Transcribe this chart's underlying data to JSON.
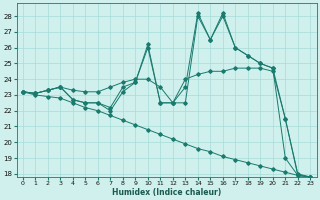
{
  "title": "",
  "xlabel": "Humidex (Indice chaleur)",
  "bg_color": "#cff0ec",
  "grid_color": "#a8ddd8",
  "line_color": "#1a7a6e",
  "xlim": [
    -0.5,
    23.5
  ],
  "ylim": [
    17.8,
    28.8
  ],
  "yticks": [
    18,
    19,
    20,
    21,
    22,
    23,
    24,
    25,
    26,
    27,
    28
  ],
  "xticks": [
    0,
    1,
    2,
    3,
    4,
    5,
    6,
    7,
    8,
    9,
    10,
    11,
    12,
    13,
    14,
    15,
    16,
    17,
    18,
    19,
    20,
    21,
    22,
    23
  ],
  "series": [
    {
      "x": [
        0,
        1,
        2,
        3,
        4,
        5,
        6,
        7,
        8,
        9,
        10,
        11,
        12,
        13,
        14,
        15,
        16,
        17,
        18,
        19,
        20,
        21,
        22,
        23
      ],
      "y": [
        23.2,
        23.1,
        23.3,
        23.5,
        23.3,
        23.2,
        23.2,
        23.5,
        23.8,
        24.0,
        24.0,
        23.5,
        22.5,
        24.0,
        24.3,
        24.5,
        24.5,
        24.7,
        24.7,
        24.7,
        24.5,
        21.5,
        18.0,
        17.8
      ]
    },
    {
      "x": [
        0,
        1,
        2,
        3,
        4,
        5,
        6,
        7,
        8,
        9,
        10,
        11,
        12,
        13,
        14,
        15,
        16,
        17,
        18,
        19,
        20,
        21,
        22,
        23
      ],
      "y": [
        23.2,
        23.1,
        23.3,
        23.5,
        22.7,
        22.5,
        22.5,
        22.2,
        23.5,
        23.8,
        26.2,
        22.5,
        22.5,
        23.5,
        28.2,
        26.5,
        28.0,
        26.0,
        25.5,
        25.0,
        24.7,
        21.5,
        17.9,
        17.8
      ]
    },
    {
      "x": [
        0,
        1,
        2,
        3,
        4,
        5,
        6,
        7,
        8,
        9,
        10,
        11,
        12,
        13,
        14,
        15,
        16,
        17,
        18,
        19,
        20,
        21,
        22,
        23
      ],
      "y": [
        23.2,
        23.1,
        23.3,
        23.5,
        22.7,
        22.5,
        22.5,
        22.0,
        23.2,
        23.8,
        26.0,
        22.5,
        22.5,
        22.5,
        28.0,
        26.5,
        28.2,
        26.0,
        25.5,
        25.0,
        24.7,
        19.0,
        17.9,
        17.8
      ]
    },
    {
      "x": [
        0,
        1,
        2,
        3,
        4,
        5,
        6,
        7,
        8,
        9,
        10,
        11,
        12,
        13,
        14,
        15,
        16,
        17,
        18,
        19,
        20,
        21,
        22,
        23
      ],
      "y": [
        23.2,
        23.0,
        22.9,
        22.8,
        22.5,
        22.2,
        22.0,
        21.7,
        21.4,
        21.1,
        20.8,
        20.5,
        20.2,
        19.9,
        19.6,
        19.4,
        19.1,
        18.9,
        18.7,
        18.5,
        18.3,
        18.1,
        17.9,
        17.8
      ]
    }
  ]
}
